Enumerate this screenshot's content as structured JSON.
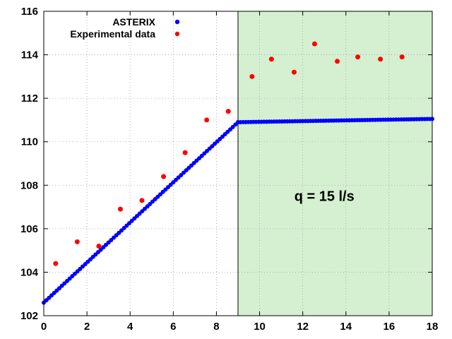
{
  "chart_data": {
    "type": "scatter",
    "xlim": [
      0,
      18
    ],
    "ylim": [
      102,
      116
    ],
    "x_ticks": [
      0,
      2,
      4,
      6,
      8,
      10,
      12,
      14,
      16,
      18
    ],
    "y_ticks": [
      102,
      104,
      106,
      108,
      110,
      112,
      114,
      116
    ],
    "grid": true,
    "legend_position": "top-left",
    "shaded_region": {
      "x_start": 9,
      "x_end": 18,
      "color": "#d4f0d0"
    },
    "annotation": {
      "text": "q = 15 l/s",
      "x": 13,
      "y": 107.5
    },
    "series": [
      {
        "name": "ASTERIX",
        "color": "#0000ff",
        "segments": [
          {
            "x_start": 0,
            "x_end": 9,
            "y_start": 102.6,
            "y_end": 110.9
          },
          {
            "x_start": 9,
            "x_end": 18,
            "y_start": 110.9,
            "y_end": 111.05
          }
        ]
      },
      {
        "name": "Experimental data",
        "color": "#ff0000",
        "x": [
          0.55,
          1.55,
          2.55,
          3.55,
          4.55,
          5.55,
          6.55,
          7.55,
          8.55,
          9.65,
          10.55,
          11.6,
          12.55,
          13.6,
          14.55,
          15.6,
          16.6
        ],
        "y": [
          104.4,
          105.4,
          105.2,
          106.9,
          107.3,
          108.4,
          109.5,
          111.0,
          111.4,
          113.0,
          113.8,
          113.2,
          114.5,
          113.7,
          113.9,
          113.8,
          113.9
        ]
      }
    ]
  }
}
